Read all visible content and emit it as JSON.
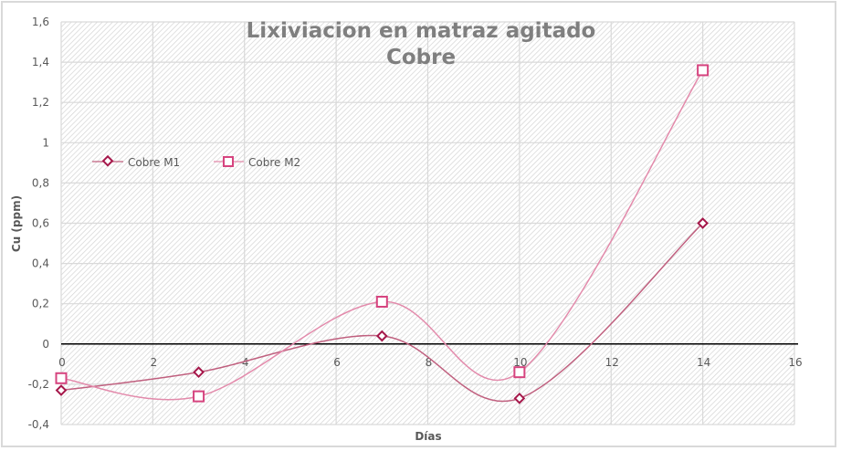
{
  "chart_data": {
    "type": "scatter",
    "subtype": "smooth-line-with-markers",
    "title": "Lixiviacion en matraz agitado Cobre",
    "title_lines": [
      "Lixiviacion en matraz agitado",
      "Cobre"
    ],
    "xlabel": "Días",
    "ylabel": "Cu (ppm)",
    "xlim": [
      0,
      16
    ],
    "ylim": [
      -0.4,
      1.6
    ],
    "x_ticks": [
      "0",
      "2",
      "4",
      "6",
      "8",
      "10",
      "12",
      "14",
      "16"
    ],
    "y_ticks": [
      "-0,4",
      "-0,2",
      "0",
      "0,2",
      "0,4",
      "0,6",
      "0,8",
      "1",
      "1,2",
      "1,4",
      "1,6"
    ],
    "grid": true,
    "legend_position": "inside-upper-left",
    "series": [
      {
        "name": "Cobre M1",
        "marker": "diamond",
        "color": "#a5174a",
        "line_color": "#c0607f",
        "x": [
          0,
          3,
          7,
          10,
          14
        ],
        "values": [
          -0.23,
          -0.14,
          0.04,
          -0.27,
          0.6
        ]
      },
      {
        "name": "Cobre M2",
        "marker": "square",
        "color": "#d6447f",
        "line_color": "#e38aab",
        "x": [
          0,
          3,
          7,
          10,
          14
        ],
        "values": [
          -0.17,
          -0.26,
          0.21,
          -0.14,
          1.36
        ]
      }
    ]
  },
  "legend": {
    "m1": "Cobre M1",
    "m2": "Cobre M2"
  },
  "axis": {
    "x_label": "Días",
    "y_label": "Cu (ppm)"
  },
  "title": {
    "line1": "Lixiviacion en matraz agitado",
    "line2": "Cobre"
  }
}
